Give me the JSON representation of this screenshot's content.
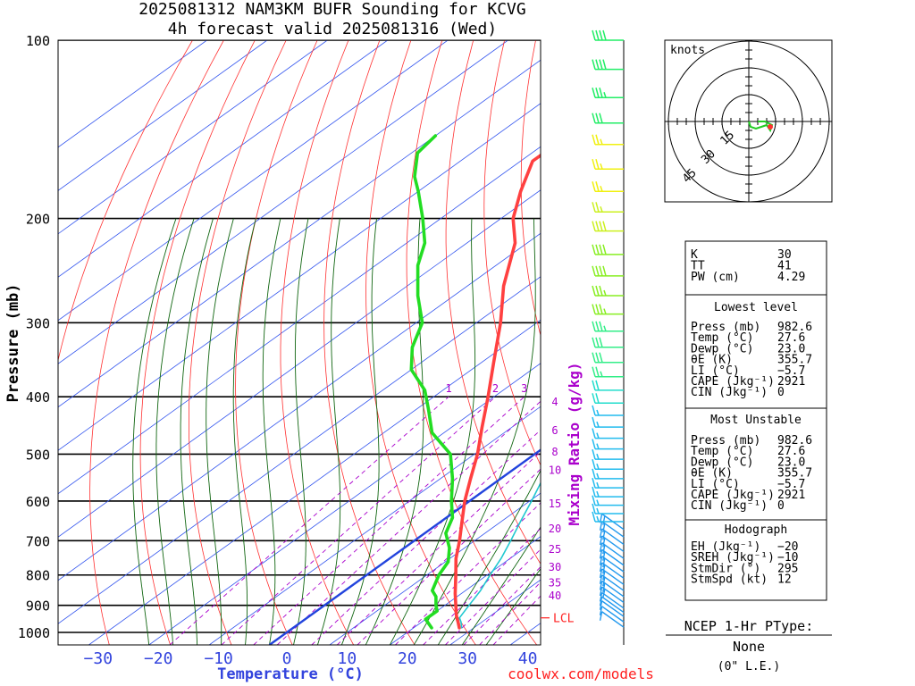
{
  "header": {
    "title": "2025081312 NAM3KM BUFR Sounding for KCVG",
    "subtitle": "4h forecast valid 2025081316 (Wed)"
  },
  "axes": {
    "ylabel": "Pressure (mb)",
    "xlabel": "Temperature (°C)",
    "mixing_ratio_label": "Mixing Ratio (g/kg)",
    "lcl_label": "LCL",
    "credit": "coolwx.com/models"
  },
  "colors": {
    "temperature": "#ff4040",
    "dewpoint": "#22dd22",
    "parcel": "#20c8d0",
    "freezing_isotherm": "#2244dd",
    "isotherm": "#3355ee",
    "dry_adiabat": "#ff3030",
    "moist_adiabat": "#116611",
    "mixing_ratio": "#aa00cc",
    "xlabel": "#3344dd",
    "credit": "#ff2020"
  },
  "chart_data": {
    "type": "line",
    "skew": "skew-T log-p",
    "pressure_ticks": [
      100,
      200,
      300,
      400,
      500,
      600,
      700,
      800,
      900,
      1000
    ],
    "temperature_ticks": [
      -30,
      -20,
      -10,
      0,
      10,
      20,
      30,
      40
    ],
    "xlim": [
      -38,
      41
    ],
    "ylim": [
      1050,
      100
    ],
    "mixing_ratio_lines": [
      1,
      2,
      3,
      4,
      6,
      8,
      10,
      15,
      20,
      25,
      30,
      35,
      40
    ],
    "lcl_pressure": 945,
    "series": [
      {
        "key": "temperature",
        "points": [
          [
            982.6,
            27.6
          ],
          [
            960,
            26
          ],
          [
            940,
            24.5
          ],
          [
            900,
            21.8
          ],
          [
            860,
            19
          ],
          [
            800,
            14.8
          ],
          [
            750,
            11
          ],
          [
            700,
            7.5
          ],
          [
            650,
            3.5
          ],
          [
            600,
            -0.8
          ],
          [
            550,
            -5
          ],
          [
            500,
            -9.5
          ],
          [
            450,
            -15
          ],
          [
            400,
            -21
          ],
          [
            350,
            -28
          ],
          [
            300,
            -36
          ],
          [
            260,
            -44
          ],
          [
            220,
            -52
          ],
          [
            200,
            -58
          ],
          [
            180,
            -63
          ],
          [
            160,
            -68
          ],
          [
            140,
            -68
          ],
          [
            130,
            -67
          ],
          [
            120,
            -64
          ],
          [
            110,
            -59
          ],
          [
            100,
            -55
          ]
        ]
      },
      {
        "key": "dewpoint",
        "points": [
          [
            982.6,
            23
          ],
          [
            950,
            20
          ],
          [
            920,
            20
          ],
          [
            900,
            18.5
          ],
          [
            870,
            16.5
          ],
          [
            850,
            14.5
          ],
          [
            800,
            12
          ],
          [
            760,
            10.5
          ],
          [
            720,
            7.5
          ],
          [
            680,
            3.5
          ],
          [
            640,
            1
          ],
          [
            600,
            -3
          ],
          [
            550,
            -8
          ],
          [
            500,
            -14
          ],
          [
            460,
            -22
          ],
          [
            420,
            -28
          ],
          [
            390,
            -33
          ],
          [
            360,
            -40
          ],
          [
            330,
            -45
          ],
          [
            300,
            -49
          ],
          [
            270,
            -56
          ],
          [
            240,
            -63
          ],
          [
            220,
            -67
          ],
          [
            200,
            -73
          ],
          [
            180,
            -80
          ],
          [
            170,
            -84
          ],
          [
            155,
            -89
          ],
          [
            145,
            -90
          ]
        ]
      },
      {
        "key": "parcel",
        "points": [
          [
            982.6,
            28
          ],
          [
            960,
            26.5
          ],
          [
            945,
            25.3
          ],
          [
            900,
            24
          ],
          [
            850,
            22.5
          ],
          [
            800,
            20.5
          ],
          [
            750,
            18.5
          ],
          [
            700,
            16
          ],
          [
            650,
            13.2
          ],
          [
            600,
            10.3
          ],
          [
            550,
            7
          ],
          [
            500,
            3
          ],
          [
            450,
            -1.5
          ],
          [
            400,
            -6.5
          ],
          [
            350,
            -13
          ],
          [
            300,
            -21
          ],
          [
            250,
            -31
          ],
          [
            200,
            -42
          ],
          [
            150,
            -56
          ],
          [
            110,
            -70
          ]
        ]
      }
    ],
    "wind_barbs": [
      {
        "p": 980,
        "kt": 10
      },
      {
        "p": 960,
        "kt": 10
      },
      {
        "p": 940,
        "kt": 10
      },
      {
        "p": 925,
        "kt": 10
      },
      {
        "p": 910,
        "kt": 10
      },
      {
        "p": 890,
        "kt": 15
      },
      {
        "p": 870,
        "kt": 15
      },
      {
        "p": 850,
        "kt": 15
      },
      {
        "p": 830,
        "kt": 15
      },
      {
        "p": 810,
        "kt": 15
      },
      {
        "p": 790,
        "kt": 15
      },
      {
        "p": 770,
        "kt": 15
      },
      {
        "p": 750,
        "kt": 15
      },
      {
        "p": 730,
        "kt": 15
      },
      {
        "p": 710,
        "kt": 15
      },
      {
        "p": 690,
        "kt": 15
      },
      {
        "p": 670,
        "kt": 15
      },
      {
        "p": 650,
        "kt": 15
      },
      {
        "p": 630,
        "kt": 15
      },
      {
        "p": 610,
        "kt": 15
      },
      {
        "p": 590,
        "kt": 15
      },
      {
        "p": 570,
        "kt": 15
      },
      {
        "p": 550,
        "kt": 15
      },
      {
        "p": 530,
        "kt": 15
      },
      {
        "p": 510,
        "kt": 15
      },
      {
        "p": 490,
        "kt": 15
      },
      {
        "p": 470,
        "kt": 15
      },
      {
        "p": 450,
        "kt": 15
      },
      {
        "p": 430,
        "kt": 15
      },
      {
        "p": 410,
        "kt": 20
      },
      {
        "p": 390,
        "kt": 20
      },
      {
        "p": 370,
        "kt": 25
      },
      {
        "p": 350,
        "kt": 30
      },
      {
        "p": 330,
        "kt": 30
      },
      {
        "p": 310,
        "kt": 35
      },
      {
        "p": 290,
        "kt": 35
      },
      {
        "p": 270,
        "kt": 35
      },
      {
        "p": 250,
        "kt": 40
      },
      {
        "p": 230,
        "kt": 40
      },
      {
        "p": 210,
        "kt": 40
      },
      {
        "p": 195,
        "kt": 25
      },
      {
        "p": 180,
        "kt": 25
      },
      {
        "p": 165,
        "kt": 25
      },
      {
        "p": 150,
        "kt": 25
      },
      {
        "p": 138,
        "kt": 30
      },
      {
        "p": 125,
        "kt": 35
      },
      {
        "p": 112,
        "kt": 40
      },
      {
        "p": 100,
        "kt": 40
      }
    ],
    "hodograph": {
      "label": "knots",
      "ring_labels": [
        "15",
        "30",
        "45"
      ],
      "ring_values": [
        15,
        30,
        45
      ],
      "trace": [
        [
          0,
          0
        ],
        [
          1,
          -3
        ],
        [
          4,
          -4
        ],
        [
          7,
          -3
        ],
        [
          10,
          -2
        ],
        [
          12,
          -5
        ],
        [
          13,
          -2
        ],
        [
          9,
          0
        ],
        [
          7,
          0
        ],
        [
          5,
          0
        ]
      ],
      "storm_motion": [
        6,
        -3
      ]
    }
  },
  "indices": {
    "top": [
      {
        "label": "K",
        "value": "30"
      },
      {
        "label": "TT",
        "value": "41"
      },
      {
        "label": "PW (cm)",
        "value": "4.29"
      }
    ],
    "lowest_level": {
      "heading": "Lowest level",
      "rows": [
        {
          "label": "Press (mb)",
          "value": "982.6"
        },
        {
          "label": "Temp (°C)",
          "value": "27.6"
        },
        {
          "label": "Dewp (°C)",
          "value": "23.0"
        },
        {
          "label": "θE (K)",
          "value": "355.7"
        },
        {
          "label": "LI (°C)",
          "value": "−5.7"
        },
        {
          "label": "CAPE (Jkg⁻¹)",
          "value": "2921"
        },
        {
          "label": "CIN (Jkg⁻¹)",
          "value": "0"
        }
      ]
    },
    "most_unstable": {
      "heading": "Most Unstable",
      "rows": [
        {
          "label": "Press (mb)",
          "value": "982.6"
        },
        {
          "label": "Temp (°C)",
          "value": "27.6"
        },
        {
          "label": "Dewp (°C)",
          "value": "23.0"
        },
        {
          "label": "θE (K)",
          "value": "355.7"
        },
        {
          "label": "LI (°C)",
          "value": "−5.7"
        },
        {
          "label": "CAPE (Jkg⁻¹)",
          "value": "2921"
        },
        {
          "label": "CIN (Jkg⁻¹)",
          "value": "0"
        }
      ]
    },
    "hodograph_box": {
      "heading": "Hodograph",
      "rows": [
        {
          "label": "EH (Jkg⁻¹)",
          "value": "−20"
        },
        {
          "label": "SREH (Jkg⁻¹)",
          "value": "−10"
        },
        {
          "label": "StmDir (°)",
          "value": "295"
        },
        {
          "label": "StmSpd (kt)",
          "value": "12"
        }
      ]
    }
  },
  "ptype": {
    "heading": "NCEP 1-Hr PType:",
    "value": "None",
    "note": "(0\" L.E.)"
  }
}
